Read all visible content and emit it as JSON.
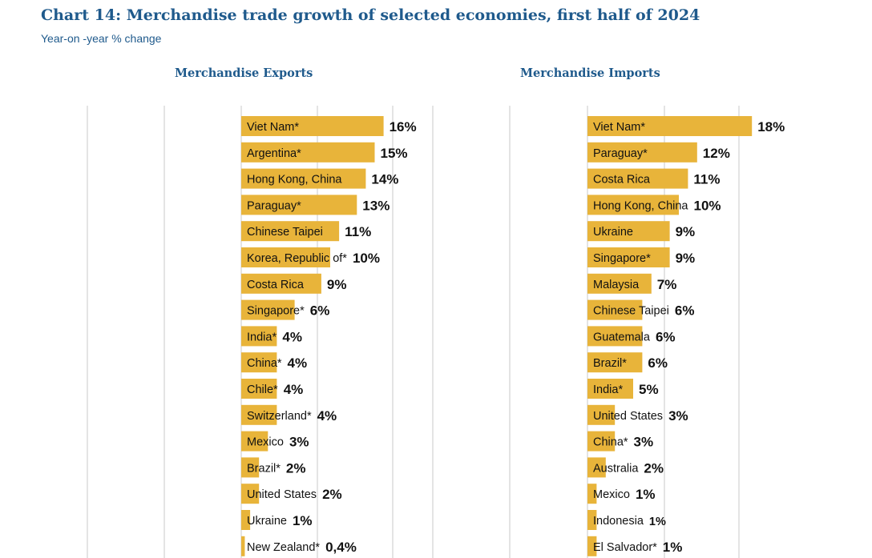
{
  "header": {
    "title": "Chart 14: Merchandise trade growth of selected economies, first half of 2024",
    "subtitle": "Year-on -year % change"
  },
  "colors": {
    "bar": "#e8b43a",
    "grid": "#c8c8c8",
    "title": "#1f5a8c",
    "text": "#111111"
  },
  "chart_data": [
    {
      "type": "bar",
      "orientation": "horizontal",
      "title": "Merchandise Exports",
      "unit": "%",
      "categories": [
        "Viet Nam*",
        "Argentina*",
        "Hong Kong, China",
        "Paraguay*",
        "Chinese Taipei",
        "Korea, Republic of*",
        "Costa Rica",
        "Singapore*",
        "India*",
        "China*",
        "Chile*",
        "Switzerland*",
        "Mexico",
        "Brazil*",
        "United States",
        "Ukraine",
        "New Zealand*"
      ],
      "values": [
        16,
        15,
        14,
        13,
        11,
        10,
        9,
        6,
        4,
        4,
        4,
        4,
        3,
        2,
        2,
        1,
        0.4
      ],
      "value_labels": [
        "16%",
        "15%",
        "14%",
        "13%",
        "11%",
        "10%",
        "9%",
        "6%",
        "4%",
        "4%",
        "4%",
        "4%",
        "3%",
        "2%",
        "2%",
        "1%",
        "0,4%"
      ],
      "xlim": [
        -20,
        20
      ],
      "grid": true
    },
    {
      "type": "bar",
      "orientation": "horizontal",
      "title": "Merchandise Imports",
      "unit": "%",
      "categories": [
        "Viet Nam*",
        "Paraguay*",
        "Costa Rica",
        "Hong Kong, China",
        "Ukraine",
        "Singapore*",
        "Malaysia",
        "Chinese Taipei",
        "Guatemala",
        "Brazil*",
        "India*",
        "United States",
        "China*",
        "Australia",
        "Mexico",
        "Indonesia",
        "El Salvador*"
      ],
      "values": [
        18,
        12,
        11,
        10,
        9,
        9,
        7,
        6,
        6,
        6,
        5,
        3,
        3,
        2,
        1,
        1,
        1
      ],
      "value_labels": [
        "18%",
        "12%",
        "11%",
        "10%",
        "9%",
        "9%",
        "7%",
        "6%",
        "6%",
        "6%",
        "5%",
        "3%",
        "3%",
        "2%",
        "1%",
        "1%",
        "1%"
      ],
      "xlim": [
        -20,
        20
      ],
      "grid": true
    }
  ]
}
